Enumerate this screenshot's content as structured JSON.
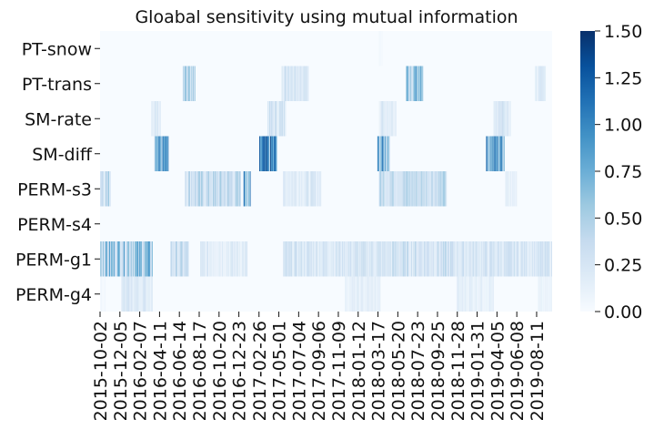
{
  "chart_data": {
    "type": "heatmap",
    "title": "Gloabal sensitivity using mutual information",
    "rows": [
      "PT-snow",
      "PT-trans",
      "SM-rate",
      "SM-diff",
      "PERM-s3",
      "PERM-s4",
      "PERM-g1",
      "PERM-g4"
    ],
    "x_tick_labels": [
      "2015-10-02",
      "2015-12-05",
      "2016-02-07",
      "2016-04-11",
      "2016-06-14",
      "2016-08-17",
      "2016-10-20",
      "2016-12-23",
      "2017-02-26",
      "2017-05-01",
      "2017-07-04",
      "2017-09-06",
      "2017-11-09",
      "2018-01-12",
      "2018-03-17",
      "2018-05-20",
      "2018-07-23",
      "2018-09-25",
      "2018-11-28",
      "2019-01-31",
      "2019-04-05",
      "2019-06-08",
      "2019-08-11"
    ],
    "x_range": [
      "2015-10-02",
      "2019-09-30"
    ],
    "colorbar": {
      "colormap": "Blues",
      "range": [
        0.0,
        1.5
      ],
      "tick_labels": [
        "0.00",
        "0.25",
        "0.50",
        "0.75",
        "1.00",
        "1.25",
        "1.50"
      ]
    },
    "intensity_segments": [
      {
        "row": "PT-snow",
        "start": "2018-03-20",
        "end": "2018-04-01",
        "value": 0.05
      },
      {
        "row": "PT-trans",
        "start": "2016-06-25",
        "end": "2016-08-05",
        "value": 0.55
      },
      {
        "row": "PT-trans",
        "start": "2017-05-10",
        "end": "2017-08-05",
        "value": 0.3
      },
      {
        "row": "PT-trans",
        "start": "2018-06-15",
        "end": "2018-08-10",
        "value": 0.75
      },
      {
        "row": "PT-trans",
        "start": "2019-08-05",
        "end": "2019-09-10",
        "value": 0.2
      },
      {
        "row": "SM-rate",
        "start": "2016-03-15",
        "end": "2016-04-15",
        "value": 0.25
      },
      {
        "row": "SM-rate",
        "start": "2017-03-25",
        "end": "2017-05-25",
        "value": 0.3
      },
      {
        "row": "SM-rate",
        "start": "2018-03-20",
        "end": "2018-05-15",
        "value": 0.25
      },
      {
        "row": "SM-rate",
        "start": "2019-03-25",
        "end": "2019-05-20",
        "value": 0.3
      },
      {
        "row": "SM-diff",
        "start": "2016-03-25",
        "end": "2016-05-10",
        "value": 0.9
      },
      {
        "row": "SM-diff",
        "start": "2017-02-27",
        "end": "2017-04-25",
        "value": 1.05
      },
      {
        "row": "SM-diff",
        "start": "2018-03-15",
        "end": "2018-04-25",
        "value": 0.85
      },
      {
        "row": "SM-diff",
        "start": "2019-03-01",
        "end": "2019-04-30",
        "value": 0.95
      },
      {
        "row": "PERM-s3",
        "start": "2015-10-02",
        "end": "2015-11-05",
        "value": 0.45
      },
      {
        "row": "PERM-s3",
        "start": "2016-07-01",
        "end": "2016-12-30",
        "value": 0.4
      },
      {
        "row": "PERM-s3",
        "start": "2017-01-05",
        "end": "2017-01-30",
        "value": 0.9
      },
      {
        "row": "PERM-s3",
        "start": "2017-05-15",
        "end": "2017-09-15",
        "value": 0.25
      },
      {
        "row": "PERM-s3",
        "start": "2018-03-20",
        "end": "2018-10-25",
        "value": 0.45
      },
      {
        "row": "PERM-s3",
        "start": "2019-05-01",
        "end": "2019-06-10",
        "value": 0.15
      },
      {
        "row": "PERM-g1",
        "start": "2015-10-02",
        "end": "2016-03-20",
        "value": 0.65
      },
      {
        "row": "PERM-g1",
        "start": "2016-05-15",
        "end": "2016-07-15",
        "value": 0.35
      },
      {
        "row": "PERM-g1",
        "start": "2016-08-20",
        "end": "2017-01-20",
        "value": 0.2
      },
      {
        "row": "PERM-g1",
        "start": "2017-05-15",
        "end": "2018-04-30",
        "value": 0.3
      },
      {
        "row": "PERM-g1",
        "start": "2018-05-01",
        "end": "2018-11-15",
        "value": 0.35
      },
      {
        "row": "PERM-g1",
        "start": "2018-11-15",
        "end": "2019-09-30",
        "value": 0.3
      },
      {
        "row": "PERM-g4",
        "start": "2015-10-02",
        "end": "2015-10-20",
        "value": 0.05
      },
      {
        "row": "PERM-g4",
        "start": "2015-12-10",
        "end": "2016-03-20",
        "value": 0.22
      },
      {
        "row": "PERM-g4",
        "start": "2017-12-01",
        "end": "2018-03-25",
        "value": 0.15
      },
      {
        "row": "PERM-g4",
        "start": "2018-11-25",
        "end": "2019-03-25",
        "value": 0.18
      },
      {
        "row": "PERM-g4",
        "start": "2019-08-15",
        "end": "2019-09-30",
        "value": 0.1
      }
    ]
  }
}
